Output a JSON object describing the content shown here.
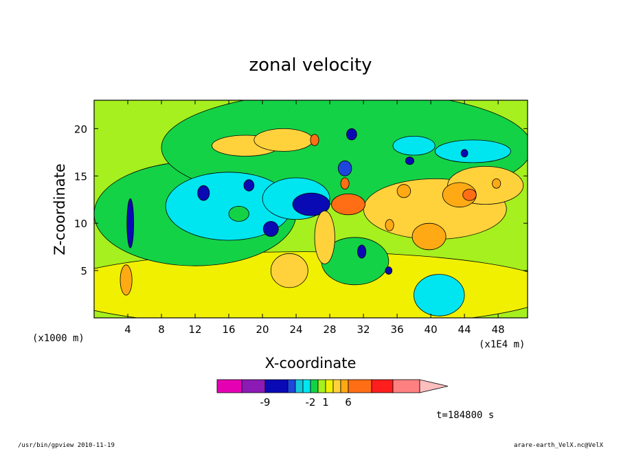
{
  "chart_data": {
    "type": "contour",
    "title": "zonal velocity",
    "xlabel": "X-coordinate",
    "ylabel": "Z-coordinate",
    "x_unit_left": "(x1000 m)",
    "x_unit_right": "(x1E4 m)",
    "xlim": [
      0,
      51.5
    ],
    "ylim": [
      0,
      23
    ],
    "x_ticks": [
      4,
      8,
      12,
      16,
      20,
      24,
      28,
      32,
      36,
      40,
      44,
      48
    ],
    "y_ticks": [
      5,
      10,
      15,
      20
    ],
    "time_label": "t=184800 s",
    "colorbar": {
      "colors": [
        "#e600b4",
        "#8c1ab4",
        "#0a0ab4",
        "#1e46dc",
        "#14c8dc",
        "#00e6f0",
        "#14d246",
        "#a5f01e",
        "#f0f000",
        "#ffd23c",
        "#ffaa14",
        "#ff6e14",
        "#ff1e1e",
        "#ff8080",
        "#ffbebe"
      ],
      "tick_labels": [
        {
          "after_box": 1,
          "label": "-9"
        },
        {
          "after_box": 5,
          "label": "-2"
        },
        {
          "after_box": 7,
          "label": "1"
        },
        {
          "after_box": 10,
          "label": "6"
        }
      ]
    },
    "features": [
      {
        "color": "#f0f000",
        "cx": 25,
        "cy": 3,
        "rx": 30,
        "ry": 4
      },
      {
        "color": "#14d246",
        "cx": 12,
        "cy": 11,
        "rx": 12,
        "ry": 5.5
      },
      {
        "color": "#14d246",
        "cx": 30,
        "cy": 18,
        "rx": 22,
        "ry": 6
      },
      {
        "color": "#00e6f0",
        "cx": 16,
        "cy": 11.8,
        "rx": 7.5,
        "ry": 3.6
      },
      {
        "color": "#00e6f0",
        "cx": 24,
        "cy": 12.6,
        "rx": 4,
        "ry": 2.2
      },
      {
        "color": "#00e6f0",
        "cx": 41,
        "cy": 2.4,
        "rx": 3,
        "ry": 2.2
      },
      {
        "color": "#00e6f0",
        "cx": 45,
        "cy": 17.6,
        "rx": 4.5,
        "ry": 1.2
      },
      {
        "color": "#00e6f0",
        "cx": 38,
        "cy": 18.2,
        "rx": 2.5,
        "ry": 1
      },
      {
        "color": "#14d246",
        "cx": 17.2,
        "cy": 11,
        "rx": 1.2,
        "ry": 0.8
      },
      {
        "color": "#14d246",
        "cx": 31,
        "cy": 6,
        "rx": 4,
        "ry": 2.5
      },
      {
        "color": "#0a0ab4",
        "cx": 13,
        "cy": 13.2,
        "rx": 0.7,
        "ry": 0.8
      },
      {
        "color": "#0a0ab4",
        "cx": 18.4,
        "cy": 14,
        "rx": 0.6,
        "ry": 0.6
      },
      {
        "color": "#0a0ab4",
        "cx": 21,
        "cy": 9.4,
        "rx": 0.9,
        "ry": 0.8
      },
      {
        "color": "#0a0ab4",
        "cx": 25.8,
        "cy": 12,
        "rx": 2.2,
        "ry": 1.2
      },
      {
        "color": "#0a0ab4",
        "cx": 31.8,
        "cy": 7,
        "rx": 0.5,
        "ry": 0.7
      },
      {
        "color": "#0a0ab4",
        "cx": 35,
        "cy": 5,
        "rx": 0.4,
        "ry": 0.4
      },
      {
        "color": "#0a0ab4",
        "cx": 44,
        "cy": 17.4,
        "rx": 0.4,
        "ry": 0.4
      },
      {
        "color": "#0a0ab4",
        "cx": 37.5,
        "cy": 16.6,
        "rx": 0.5,
        "ry": 0.4
      },
      {
        "color": "#0a0ab4",
        "cx": 30.6,
        "cy": 19.4,
        "rx": 0.6,
        "ry": 0.6
      },
      {
        "color": "#0a0ab4",
        "cx": 4.3,
        "cy": 10,
        "rx": 0.4,
        "ry": 2.6
      },
      {
        "color": "#1e46dc",
        "cx": 29.8,
        "cy": 15.8,
        "rx": 0.8,
        "ry": 0.8
      },
      {
        "color": "#ffd23c",
        "cx": 18,
        "cy": 18.2,
        "rx": 4,
        "ry": 1.1
      },
      {
        "color": "#ffd23c",
        "cx": 22.5,
        "cy": 18.8,
        "rx": 3.5,
        "ry": 1.2
      },
      {
        "color": "#ffd23c",
        "cx": 40.5,
        "cy": 11.5,
        "rx": 8.5,
        "ry": 3.2
      },
      {
        "color": "#ffd23c",
        "cx": 46.5,
        "cy": 14,
        "rx": 4.5,
        "ry": 2
      },
      {
        "color": "#ffd23c",
        "cx": 23.2,
        "cy": 5,
        "rx": 2.2,
        "ry": 1.8
      },
      {
        "color": "#ffd23c",
        "cx": 27.4,
        "cy": 8.5,
        "rx": 1.2,
        "ry": 2.8
      },
      {
        "color": "#ffaa14",
        "cx": 39.8,
        "cy": 8.6,
        "rx": 2,
        "ry": 1.4
      },
      {
        "color": "#ffaa14",
        "cx": 43.4,
        "cy": 13,
        "rx": 2,
        "ry": 1.3
      },
      {
        "color": "#ffaa14",
        "cx": 36.8,
        "cy": 13.4,
        "rx": 0.8,
        "ry": 0.7
      },
      {
        "color": "#ffaa14",
        "cx": 47.8,
        "cy": 14.2,
        "rx": 0.5,
        "ry": 0.5
      },
      {
        "color": "#ffaa14",
        "cx": 35.1,
        "cy": 9.8,
        "rx": 0.5,
        "ry": 0.6
      },
      {
        "color": "#ffaa14",
        "cx": 3.8,
        "cy": 4,
        "rx": 0.7,
        "ry": 1.6
      },
      {
        "color": "#ff6e14",
        "cx": 30.2,
        "cy": 12,
        "rx": 2,
        "ry": 1.1
      },
      {
        "color": "#ff6e14",
        "cx": 26.2,
        "cy": 18.8,
        "rx": 0.5,
        "ry": 0.6
      },
      {
        "color": "#ff6e14",
        "cx": 29.8,
        "cy": 14.2,
        "rx": 0.5,
        "ry": 0.6
      },
      {
        "color": "#ff6e14",
        "cx": 44.6,
        "cy": 13,
        "rx": 0.8,
        "ry": 0.6
      }
    ]
  },
  "footer": {
    "left": "/usr/bin/gpview   2010-11-19",
    "right": "arare-earth_VelX.nc@VelX"
  }
}
